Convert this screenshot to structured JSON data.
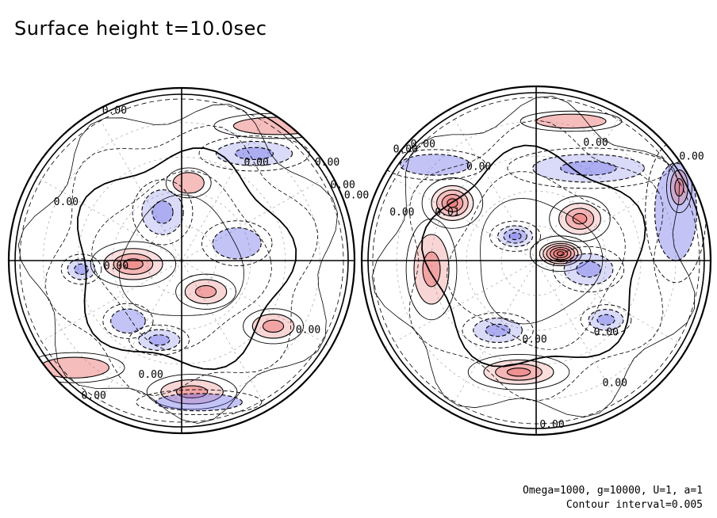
{
  "title": "Surface height t=10.0sec",
  "parameters": "Omega=1000, g=10000, U=1, a=1",
  "contour_interval_text": "Contour interval=0.005",
  "colors": {
    "positive": "#e85a5a",
    "negative": "#6a6ae8",
    "line": "#000000"
  },
  "chart_data": {
    "type": "contour",
    "projection": "polar (two hemispheres)",
    "variable": "Surface height",
    "time": "10.0sec",
    "contour_interval": 0.005,
    "grid": true,
    "hemispheres": [
      {
        "name": "left",
        "contour_labels": [
          "0.00",
          "0.00",
          "0.00",
          "0.00",
          "0.00",
          "0.00",
          "0.00",
          "0.00",
          "0.00",
          "0.00"
        ],
        "features": [
          {
            "sign": "negative",
            "u": -0.58,
            "v": -0.05,
            "a": 0.08,
            "b": 0.06,
            "levels": 2
          },
          {
            "sign": "positive",
            "u": -0.28,
            "v": -0.02,
            "a": 0.17,
            "b": 0.09,
            "levels": 3
          },
          {
            "sign": "negative",
            "u": 0.42,
            "v": 0.62,
            "a": 0.22,
            "b": 0.07,
            "levels": 2
          },
          {
            "sign": "positive",
            "u": 0.04,
            "v": 0.45,
            "a": 0.09,
            "b": 0.06,
            "levels": 1
          },
          {
            "sign": "negative",
            "u": -0.11,
            "v": 0.28,
            "a": 0.12,
            "b": 0.13,
            "levels": 2
          },
          {
            "sign": "negative",
            "u": 0.32,
            "v": 0.1,
            "a": 0.14,
            "b": 0.09,
            "levels": 1
          },
          {
            "sign": "positive",
            "u": 0.14,
            "v": -0.18,
            "a": 0.12,
            "b": 0.07,
            "levels": 2
          },
          {
            "sign": "negative",
            "u": -0.13,
            "v": -0.46,
            "a": 0.12,
            "b": 0.06,
            "levels": 2
          },
          {
            "sign": "negative",
            "u": -0.31,
            "v": -0.35,
            "a": 0.1,
            "b": 0.07,
            "levels": 1
          },
          {
            "sign": "positive",
            "u": 0.06,
            "v": -0.76,
            "a": 0.18,
            "b": 0.07,
            "levels": 2
          },
          {
            "sign": "positive",
            "u": 0.53,
            "v": -0.38,
            "a": 0.12,
            "b": 0.07,
            "levels": 2
          },
          {
            "sign": "positive",
            "u": -0.62,
            "v": -0.62,
            "a": 0.2,
            "b": 0.06,
            "levels": 1
          },
          {
            "sign": "negative",
            "u": 0.1,
            "v": -0.82,
            "a": 0.25,
            "b": 0.05,
            "levels": 1
          },
          {
            "sign": "positive",
            "u": 0.55,
            "v": 0.78,
            "a": 0.25,
            "b": 0.05,
            "levels": 1
          }
        ]
      },
      {
        "name": "right",
        "contour_labels": [
          "0.00",
          "0.00",
          "0.00",
          "0.00",
          "0.00",
          "0.00",
          "0.00",
          "0.00",
          "0.00",
          "0.00",
          "0.01"
        ],
        "features": [
          {
            "sign": "positive",
            "u": -0.48,
            "v": 0.33,
            "a": 0.12,
            "b": 0.1,
            "levels": 4
          },
          {
            "sign": "positive",
            "u": 0.14,
            "v": 0.04,
            "a": 0.12,
            "b": 0.07,
            "levels": 6
          },
          {
            "sign": "positive",
            "u": 0.25,
            "v": 0.24,
            "a": 0.12,
            "b": 0.09,
            "levels": 3
          },
          {
            "sign": "positive",
            "u": -0.6,
            "v": -0.05,
            "a": 0.1,
            "b": 0.2,
            "levels": 2
          },
          {
            "sign": "positive",
            "u": -0.1,
            "v": -0.64,
            "a": 0.2,
            "b": 0.07,
            "levels": 3
          },
          {
            "sign": "negative",
            "u": -0.12,
            "v": 0.14,
            "a": 0.1,
            "b": 0.06,
            "levels": 3
          },
          {
            "sign": "negative",
            "u": 0.3,
            "v": 0.53,
            "a": 0.32,
            "b": 0.08,
            "levels": 2
          },
          {
            "sign": "negative",
            "u": 0.8,
            "v": 0.28,
            "a": 0.12,
            "b": 0.28,
            "levels": 1
          },
          {
            "sign": "negative",
            "u": -0.22,
            "v": -0.4,
            "a": 0.14,
            "b": 0.07,
            "levels": 2
          },
          {
            "sign": "negative",
            "u": -0.58,
            "v": 0.55,
            "a": 0.2,
            "b": 0.06,
            "levels": 1
          },
          {
            "sign": "negative",
            "u": 0.3,
            "v": -0.05,
            "a": 0.14,
            "b": 0.09,
            "levels": 2
          },
          {
            "sign": "negative",
            "u": 0.4,
            "v": -0.34,
            "a": 0.1,
            "b": 0.06,
            "levels": 2
          },
          {
            "sign": "positive",
            "u": 0.2,
            "v": 0.8,
            "a": 0.2,
            "b": 0.04,
            "levels": 1
          },
          {
            "sign": "positive",
            "u": 0.82,
            "v": 0.42,
            "a": 0.05,
            "b": 0.1,
            "levels": 2
          }
        ]
      }
    ]
  }
}
